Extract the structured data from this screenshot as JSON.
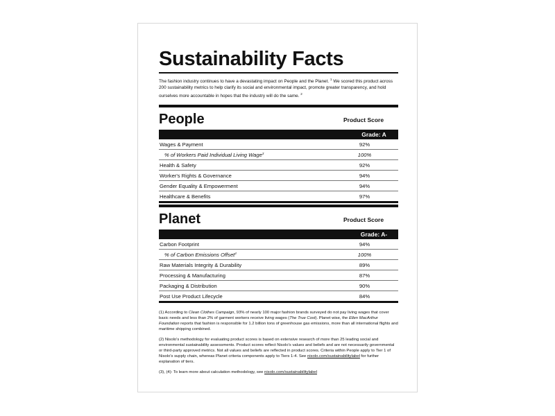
{
  "title": "Sustainability Facts",
  "intro": [
    {
      "text": "The fashion industry continues to have a devastating impact on People and the Planet. "
    },
    {
      "sup": "1"
    },
    {
      "text": " We scored this product across 200 sustainability metrics to help clarify its social and environmental impact, promote greater transparency, and hold ourselves more accountable in hopes that the industry will do the same. "
    },
    {
      "sup": "2"
    }
  ],
  "sections": [
    {
      "heading": "People",
      "score_label": "Product Score",
      "grade": "Grade: A",
      "rows": [
        {
          "label": "Wages & Payment",
          "score": "92%"
        },
        {
          "label": "% of Workers Paid Individual Living Wage",
          "note": "3",
          "score": "100%",
          "sub": true
        },
        {
          "label": "Health & Safety",
          "score": "92%"
        },
        {
          "label": "Worker's Rights & Governance",
          "score": "94%"
        },
        {
          "label": "Gender Equality & Empowerment",
          "score": "94%"
        },
        {
          "label": "Healthcare & Benefits",
          "score": "97%"
        }
      ]
    },
    {
      "heading": "Planet",
      "score_label": "Product Score",
      "grade": "Grade: A-",
      "rows": [
        {
          "label": "Carbon Footprint",
          "score": "94%"
        },
        {
          "label": "% of Carbon Emissions Offset",
          "note": "4",
          "score": "100%",
          "sub": true
        },
        {
          "label": "Raw Materials Integrity & Durability",
          "score": "89%"
        },
        {
          "label": "Processing & Manufacturing",
          "score": "87%"
        },
        {
          "label": "Packaging & Distribution",
          "score": "90%"
        },
        {
          "label": "Post Use Product Lifecycle",
          "score": "84%"
        }
      ]
    }
  ],
  "footnotes": [
    [
      {
        "text": "(1) According to "
      },
      {
        "em": "Clean Clothes Campaign"
      },
      {
        "text": ", 93% of nearly 100 major fashion brands surveyed do not pay living wages that cover basic needs and less than 2% of garment workers receive living wages ("
      },
      {
        "em": "The True Cost"
      },
      {
        "text": "). Planet wise, the "
      },
      {
        "em": "Ellen MacArthur Foundation"
      },
      {
        "text": " reports that fashion is responsible for 1.2 billion tons of greenhouse gas emissions, more than all international flights and maritime shipping combined."
      }
    ],
    [
      {
        "text": "(2) Nisolo's methodology for evaluating product scores is based on extensive research of more than 25 leading social and environmental sustainability assessments. Product scores reflect Nisolo's values and beliefs and are not necessarily governmental or third-party approved metrics. Not all values and beliefs are reflected in product scores. Criteria within People apply to Tier 1 of Nisolo's supply chain, whereas Planet criteria components apply to Tiers 1-4. See "
      },
      {
        "link": "nisolo.com/sustainabilitylabel"
      },
      {
        "text": " for further explanation of tiers."
      }
    ],
    [
      {
        "text": "(3), (4): To learn more about calculation methodology, see "
      },
      {
        "link": "nisolo.com/sustainabilitylabel"
      }
    ]
  ]
}
